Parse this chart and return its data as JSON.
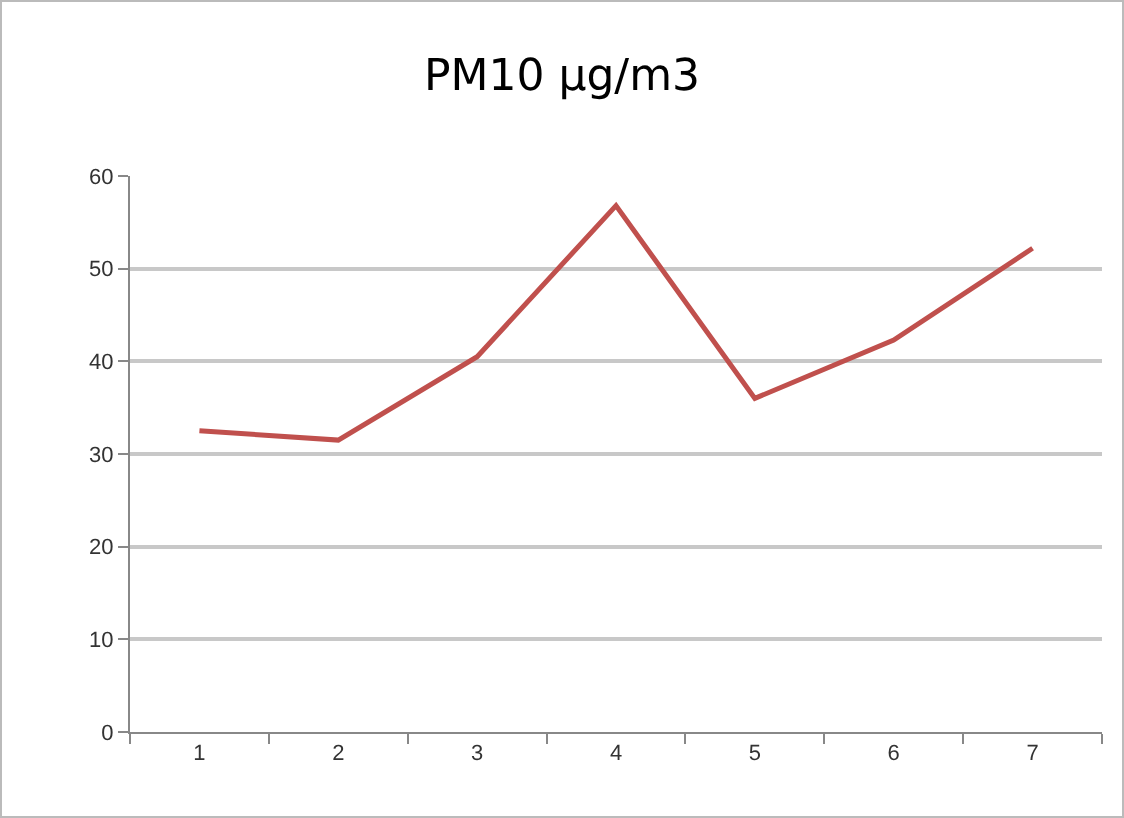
{
  "chart_data": {
    "type": "line",
    "title": "PM10 µg/m3",
    "categories": [
      "1",
      "2",
      "3",
      "4",
      "5",
      "6",
      "7"
    ],
    "series": [
      {
        "color": "#c0504d",
        "values": [
          32.5,
          31.5,
          40.5,
          56.8,
          36,
          42.3,
          52.2
        ]
      }
    ],
    "ylim": [
      0,
      60
    ],
    "yticks": [
      0,
      10,
      20,
      30,
      40,
      50,
      60
    ],
    "grid": "y",
    "marker": "none",
    "line_style": "solid"
  }
}
